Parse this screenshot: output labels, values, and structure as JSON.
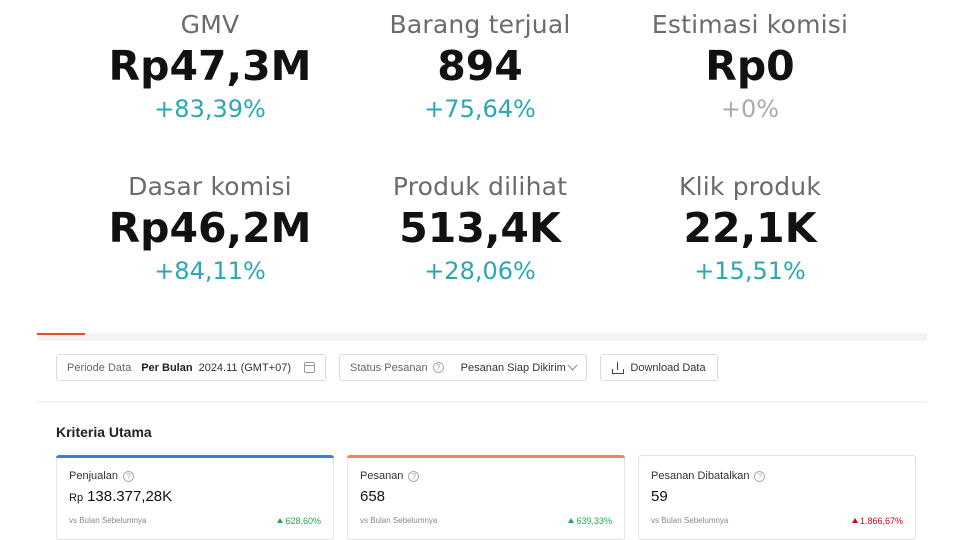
{
  "metrics": [
    {
      "label": "GMV",
      "value": "Rp47,3M",
      "change": "+83,39%",
      "change_color": "#2aa7b3"
    },
    {
      "label": "Barang terjual",
      "value": "894",
      "change": "+75,64%",
      "change_color": "#2aa7b3"
    },
    {
      "label": "Estimasi komisi",
      "value": "Rp0",
      "change": "+0%",
      "change_color": "#a9a9a9"
    },
    {
      "label": "Dasar komisi",
      "value": "Rp46,2M",
      "change": "+84,11%",
      "change_color": "#2aa7b3"
    },
    {
      "label": "Produk dilihat",
      "value": "513,4K",
      "change": "+28,06%",
      "change_color": "#2aa7b3"
    },
    {
      "label": "Klik produk",
      "value": "22,1K",
      "change": "+15,51%",
      "change_color": "#2aa7b3"
    }
  ],
  "filters": {
    "periode_label": "Periode Data",
    "periode_type": "Per Bulan",
    "periode_value": "2024.11 (GMT+07)",
    "status_label": "Status Pesanan",
    "status_value": "Pesanan Siap Dikirim",
    "download_label": "Download Data"
  },
  "panel": {
    "title": "Kriteria Utama",
    "cards": [
      {
        "label": "Penjualan",
        "unit": "Rp",
        "value": "138.377,28K",
        "sub": "vs Bulan Sebelumnya",
        "pct": "628,60%",
        "accent": "#3b7dd8",
        "trend": "up"
      },
      {
        "label": "Pesanan",
        "unit": "",
        "value": "658",
        "sub": "vs Bulan Sebelumnya",
        "pct": "639,33%",
        "accent": "#f0845c",
        "trend": "up"
      },
      {
        "label": "Pesanan Dibatalkan",
        "unit": "",
        "value": "59",
        "sub": "vs Bulan Sebelumnya",
        "pct": "1.866,67%",
        "accent": "",
        "trend": "up-red"
      }
    ]
  }
}
